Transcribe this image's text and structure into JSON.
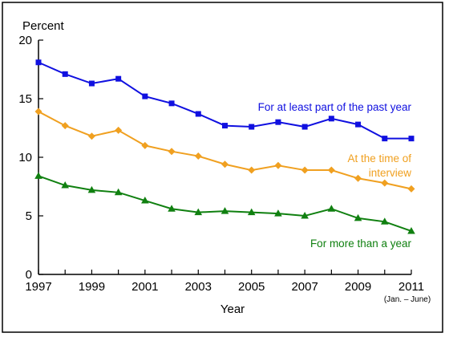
{
  "chart_data": {
    "type": "line",
    "ylabel": "Percent",
    "xlabel": "Year",
    "x_note": "(Jan. – June)",
    "ylim": [
      0,
      20
    ],
    "yticks": [
      0,
      5,
      10,
      15,
      20
    ],
    "xlim": [
      1997,
      2011
    ],
    "xticks": [
      1997,
      1999,
      2001,
      2003,
      2005,
      2007,
      2009,
      2011
    ],
    "x": [
      1997,
      1998,
      1999,
      2000,
      2001,
      2002,
      2003,
      2004,
      2005,
      2006,
      2007,
      2008,
      2009,
      2010,
      2011
    ],
    "series": [
      {
        "name": "For at least part of the past year",
        "color": "#1010e0",
        "marker": "square",
        "values": [
          18.1,
          17.1,
          16.3,
          16.7,
          15.2,
          14.6,
          13.7,
          12.7,
          12.6,
          13.0,
          12.6,
          13.3,
          12.8,
          11.6,
          11.6
        ]
      },
      {
        "name": "At the time of interview",
        "color": "#f0a020",
        "marker": "diamond",
        "values": [
          13.9,
          12.7,
          11.8,
          12.3,
          11.0,
          10.5,
          10.1,
          9.4,
          8.9,
          9.3,
          8.9,
          8.9,
          8.2,
          7.8,
          7.3
        ]
      },
      {
        "name": "For more than a year",
        "color": "#108010",
        "marker": "triangle",
        "values": [
          8.4,
          7.6,
          7.2,
          7.0,
          6.3,
          5.6,
          5.3,
          5.4,
          5.3,
          5.2,
          5.0,
          5.6,
          4.8,
          4.5,
          3.7
        ]
      }
    ],
    "grid": false,
    "legend": "inline labels"
  }
}
